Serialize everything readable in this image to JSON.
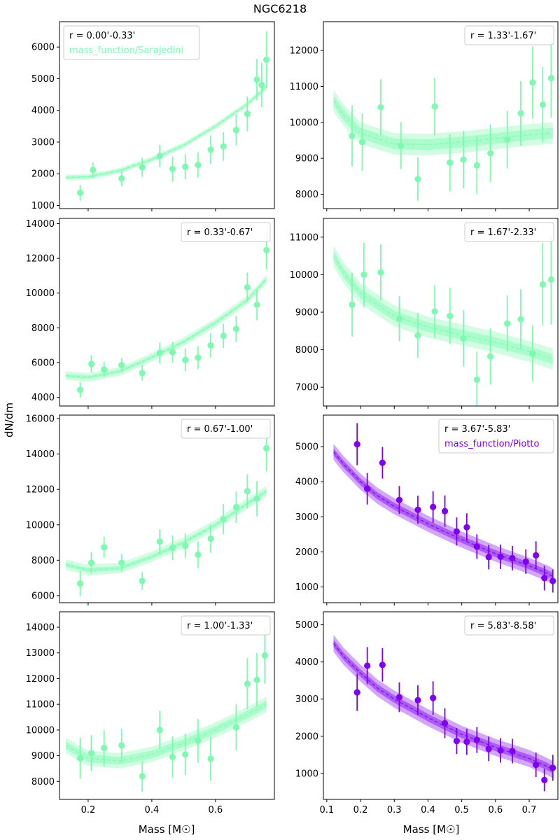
{
  "figure": {
    "title": "NGC6218",
    "ylabel": "dN/dm",
    "xlabel": "Mass [M☉]"
  },
  "colors": {
    "sarajedini": "#7dfab0",
    "piotto": "#7f00f0"
  },
  "chart_data": [
    {
      "type": "line",
      "annotation": "r = 0.00'-0.33'",
      "series_label": "mass_function/Sarajedini",
      "color": "sarajedini",
      "xlim": [
        0.11,
        0.785
      ],
      "ylim": [
        900,
        6800
      ],
      "xticks": [
        0.2,
        0.4,
        0.6
      ],
      "xtick_labels": false,
      "yticks": [
        1000,
        2000,
        3000,
        4000,
        5000,
        6000
      ],
      "model": {
        "x": [
          0.13,
          0.2,
          0.3,
          0.4,
          0.5,
          0.6,
          0.7,
          0.76
        ],
        "y": [
          1880,
          1900,
          2100,
          2450,
          2900,
          3500,
          4200,
          4750
        ],
        "inner": 40,
        "outer": 90
      },
      "points": [
        {
          "x": 0.175,
          "y": 1400,
          "err": 250
        },
        {
          "x": 0.215,
          "y": 2120,
          "err": 250
        },
        {
          "x": 0.305,
          "y": 1850,
          "err": 250
        },
        {
          "x": 0.37,
          "y": 2200,
          "err": 300
        },
        {
          "x": 0.425,
          "y": 2560,
          "err": 350
        },
        {
          "x": 0.465,
          "y": 2150,
          "err": 400
        },
        {
          "x": 0.505,
          "y": 2220,
          "err": 400
        },
        {
          "x": 0.545,
          "y": 2280,
          "err": 400
        },
        {
          "x": 0.585,
          "y": 2760,
          "err": 450
        },
        {
          "x": 0.625,
          "y": 2860,
          "err": 450
        },
        {
          "x": 0.665,
          "y": 3380,
          "err": 500
        },
        {
          "x": 0.7,
          "y": 3890,
          "err": 550
        },
        {
          "x": 0.73,
          "y": 4970,
          "err": 650
        },
        {
          "x": 0.745,
          "y": 4800,
          "err": 700
        },
        {
          "x": 0.76,
          "y": 5600,
          "err": 900
        }
      ]
    },
    {
      "type": "line",
      "annotation": "r = 1.33'-1.67'",
      "series_label": "",
      "color": "sarajedini",
      "xlim": [
        0.09,
        0.785
      ],
      "ylim": [
        7600,
        12800
      ],
      "xticks": [
        0.1,
        0.2,
        0.3,
        0.4,
        0.5,
        0.6,
        0.7
      ],
      "xtick_labels": false,
      "yticks": [
        8000,
        9000,
        10000,
        11000,
        12000
      ],
      "model": {
        "x": [
          0.12,
          0.15,
          0.2,
          0.3,
          0.4,
          0.5,
          0.6,
          0.7,
          0.77
        ],
        "y": [
          10600,
          10200,
          9700,
          9400,
          9380,
          9450,
          9550,
          9650,
          9700
        ],
        "inner": 150,
        "outer": 300
      },
      "points": [
        {
          "x": 0.175,
          "y": 9620,
          "err": 850
        },
        {
          "x": 0.205,
          "y": 9450,
          "err": 800
        },
        {
          "x": 0.26,
          "y": 10420,
          "err": 780
        },
        {
          "x": 0.32,
          "y": 9350,
          "err": 650
        },
        {
          "x": 0.37,
          "y": 8420,
          "err": 600
        },
        {
          "x": 0.42,
          "y": 10440,
          "err": 800
        },
        {
          "x": 0.465,
          "y": 8880,
          "err": 800
        },
        {
          "x": 0.505,
          "y": 8960,
          "err": 800
        },
        {
          "x": 0.545,
          "y": 8800,
          "err": 800
        },
        {
          "x": 0.585,
          "y": 9140,
          "err": 800
        },
        {
          "x": 0.635,
          "y": 9520,
          "err": 800
        },
        {
          "x": 0.675,
          "y": 10250,
          "err": 900
        },
        {
          "x": 0.71,
          "y": 11110,
          "err": 1000
        },
        {
          "x": 0.74,
          "y": 10490,
          "err": 1050
        },
        {
          "x": 0.765,
          "y": 11230,
          "err": 1100
        }
      ]
    },
    {
      "type": "line",
      "annotation": "r = 0.33'-0.67'",
      "series_label": "",
      "color": "sarajedini",
      "xlim": [
        0.11,
        0.785
      ],
      "ylim": [
        3500,
        14300
      ],
      "xticks": [
        0.2,
        0.4,
        0.6
      ],
      "xtick_labels": false,
      "yticks": [
        4000,
        6000,
        8000,
        10000,
        12000,
        14000
      ],
      "model": {
        "x": [
          0.13,
          0.2,
          0.3,
          0.4,
          0.5,
          0.6,
          0.7,
          0.76
        ],
        "y": [
          5250,
          5150,
          5500,
          6300,
          7200,
          8300,
          9600,
          10800
        ],
        "inner": 100,
        "outer": 250
      },
      "points": [
        {
          "x": 0.175,
          "y": 4430,
          "err": 450
        },
        {
          "x": 0.21,
          "y": 5920,
          "err": 500
        },
        {
          "x": 0.25,
          "y": 5600,
          "err": 450
        },
        {
          "x": 0.305,
          "y": 5850,
          "err": 400
        },
        {
          "x": 0.37,
          "y": 5400,
          "err": 450
        },
        {
          "x": 0.425,
          "y": 6550,
          "err": 600
        },
        {
          "x": 0.465,
          "y": 6600,
          "err": 600
        },
        {
          "x": 0.505,
          "y": 6150,
          "err": 650
        },
        {
          "x": 0.545,
          "y": 6280,
          "err": 650
        },
        {
          "x": 0.585,
          "y": 6990,
          "err": 700
        },
        {
          "x": 0.625,
          "y": 7540,
          "err": 700
        },
        {
          "x": 0.665,
          "y": 7940,
          "err": 750
        },
        {
          "x": 0.7,
          "y": 10330,
          "err": 850
        },
        {
          "x": 0.73,
          "y": 9330,
          "err": 900
        },
        {
          "x": 0.76,
          "y": 12470,
          "err": 1100
        }
      ]
    },
    {
      "type": "line",
      "annotation": "r = 1.67'-2.33'",
      "series_label": "",
      "color": "sarajedini",
      "xlim": [
        0.09,
        0.785
      ],
      "ylim": [
        6500,
        11500
      ],
      "xticks": [
        0.1,
        0.2,
        0.3,
        0.4,
        0.5,
        0.6,
        0.7
      ],
      "xtick_labels": false,
      "yticks": [
        7000,
        8000,
        9000,
        10000,
        11000
      ],
      "model": {
        "x": [
          0.12,
          0.15,
          0.2,
          0.3,
          0.4,
          0.5,
          0.6,
          0.7,
          0.77
        ],
        "y": [
          10500,
          10050,
          9500,
          8900,
          8600,
          8400,
          8200,
          7950,
          7750
        ],
        "inner": 130,
        "outer": 280
      },
      "points": [
        {
          "x": 0.175,
          "y": 9200,
          "err": 850
        },
        {
          "x": 0.21,
          "y": 10000,
          "err": 850
        },
        {
          "x": 0.26,
          "y": 10060,
          "err": 750
        },
        {
          "x": 0.315,
          "y": 8830,
          "err": 600
        },
        {
          "x": 0.37,
          "y": 8380,
          "err": 600
        },
        {
          "x": 0.42,
          "y": 9020,
          "err": 700
        },
        {
          "x": 0.465,
          "y": 8900,
          "err": 750
        },
        {
          "x": 0.505,
          "y": 8300,
          "err": 750
        },
        {
          "x": 0.545,
          "y": 7200,
          "err": 750
        },
        {
          "x": 0.585,
          "y": 7820,
          "err": 750
        },
        {
          "x": 0.635,
          "y": 8700,
          "err": 750
        },
        {
          "x": 0.675,
          "y": 8810,
          "err": 800
        },
        {
          "x": 0.71,
          "y": 7900,
          "err": 750
        },
        {
          "x": 0.74,
          "y": 9740,
          "err": 1100
        },
        {
          "x": 0.765,
          "y": 9870,
          "err": 1200
        }
      ]
    },
    {
      "type": "line",
      "annotation": "r = 0.67'-1.00'",
      "series_label": "",
      "color": "sarajedini",
      "xlim": [
        0.11,
        0.785
      ],
      "ylim": [
        5600,
        16200
      ],
      "xticks": [
        0.2,
        0.4,
        0.6
      ],
      "xtick_labels": false,
      "yticks": [
        6000,
        8000,
        10000,
        12000,
        14000,
        16000
      ],
      "model": {
        "x": [
          0.13,
          0.2,
          0.3,
          0.4,
          0.5,
          0.6,
          0.7,
          0.76
        ],
        "y": [
          7750,
          7450,
          7550,
          8200,
          9000,
          10000,
          11200,
          11900
        ],
        "inner": 120,
        "outer": 300
      },
      "points": [
        {
          "x": 0.175,
          "y": 6680,
          "err": 700
        },
        {
          "x": 0.21,
          "y": 7850,
          "err": 600
        },
        {
          "x": 0.25,
          "y": 8730,
          "err": 600
        },
        {
          "x": 0.305,
          "y": 7860,
          "err": 500
        },
        {
          "x": 0.37,
          "y": 6830,
          "err": 500
        },
        {
          "x": 0.425,
          "y": 9050,
          "err": 700
        },
        {
          "x": 0.465,
          "y": 8700,
          "err": 700
        },
        {
          "x": 0.505,
          "y": 8820,
          "err": 700
        },
        {
          "x": 0.545,
          "y": 8310,
          "err": 750
        },
        {
          "x": 0.585,
          "y": 9220,
          "err": 800
        },
        {
          "x": 0.625,
          "y": 10320,
          "err": 850
        },
        {
          "x": 0.665,
          "y": 11000,
          "err": 900
        },
        {
          "x": 0.7,
          "y": 11900,
          "err": 950
        },
        {
          "x": 0.73,
          "y": 11480,
          "err": 1000
        },
        {
          "x": 0.76,
          "y": 14320,
          "err": 1300
        }
      ]
    },
    {
      "type": "line",
      "annotation": "r = 3.67'-5.83'",
      "series_label": "mass_function/Piotto",
      "color": "piotto",
      "xlim": [
        0.09,
        0.785
      ],
      "ylim": [
        550,
        5900
      ],
      "xticks": [
        0.1,
        0.2,
        0.3,
        0.4,
        0.5,
        0.6,
        0.7
      ],
      "xtick_labels": false,
      "yticks": [
        1000,
        2000,
        3000,
        4000,
        5000
      ],
      "model": {
        "x": [
          0.12,
          0.15,
          0.2,
          0.25,
          0.3,
          0.4,
          0.5,
          0.6,
          0.7,
          0.75,
          0.77
        ],
        "y": [
          4850,
          4500,
          4000,
          3600,
          3300,
          2800,
          2350,
          1950,
          1600,
          1400,
          1300
        ],
        "inner": 100,
        "outer": 230
      },
      "points": [
        {
          "x": 0.19,
          "y": 5070,
          "err": 600
        },
        {
          "x": 0.22,
          "y": 3800,
          "err": 450
        },
        {
          "x": 0.265,
          "y": 4540,
          "err": 450
        },
        {
          "x": 0.315,
          "y": 3480,
          "err": 400
        },
        {
          "x": 0.37,
          "y": 3200,
          "err": 400
        },
        {
          "x": 0.415,
          "y": 3280,
          "err": 450
        },
        {
          "x": 0.45,
          "y": 3160,
          "err": 450
        },
        {
          "x": 0.485,
          "y": 2580,
          "err": 400
        },
        {
          "x": 0.515,
          "y": 2700,
          "err": 400
        },
        {
          "x": 0.545,
          "y": 2150,
          "err": 350
        },
        {
          "x": 0.58,
          "y": 1850,
          "err": 350
        },
        {
          "x": 0.615,
          "y": 1860,
          "err": 350
        },
        {
          "x": 0.65,
          "y": 1820,
          "err": 350
        },
        {
          "x": 0.69,
          "y": 1720,
          "err": 350
        },
        {
          "x": 0.72,
          "y": 1900,
          "err": 400
        },
        {
          "x": 0.745,
          "y": 1250,
          "err": 350
        },
        {
          "x": 0.77,
          "y": 1170,
          "err": 330
        }
      ]
    },
    {
      "type": "line",
      "annotation": "r = 1.00'-1.33'",
      "series_label": "",
      "color": "sarajedini",
      "xlim": [
        0.11,
        0.785
      ],
      "ylim": [
        7300,
        14600
      ],
      "xticks": [
        0.2,
        0.4,
        0.6
      ],
      "xtick_labels": [
        0.2,
        0.4,
        0.6
      ],
      "yticks": [
        8000,
        9000,
        10000,
        11000,
        12000,
        13000,
        14000
      ],
      "model": {
        "x": [
          0.13,
          0.2,
          0.3,
          0.4,
          0.5,
          0.6,
          0.7,
          0.76
        ],
        "y": [
          9400,
          8900,
          8800,
          9050,
          9500,
          10000,
          10600,
          11000
        ],
        "inner": 150,
        "outer": 300
      },
      "points": [
        {
          "x": 0.175,
          "y": 8900,
          "err": 800
        },
        {
          "x": 0.21,
          "y": 9100,
          "err": 700
        },
        {
          "x": 0.25,
          "y": 9300,
          "err": 700
        },
        {
          "x": 0.305,
          "y": 9400,
          "err": 650
        },
        {
          "x": 0.37,
          "y": 8200,
          "err": 600
        },
        {
          "x": 0.425,
          "y": 10000,
          "err": 750
        },
        {
          "x": 0.465,
          "y": 8950,
          "err": 800
        },
        {
          "x": 0.505,
          "y": 9050,
          "err": 800
        },
        {
          "x": 0.545,
          "y": 9580,
          "err": 850
        },
        {
          "x": 0.585,
          "y": 8880,
          "err": 850
        },
        {
          "x": 0.665,
          "y": 10100,
          "err": 900
        },
        {
          "x": 0.7,
          "y": 11800,
          "err": 1000
        },
        {
          "x": 0.73,
          "y": 11950,
          "err": 1050
        },
        {
          "x": 0.755,
          "y": 12900,
          "err": 1100
        }
      ]
    },
    {
      "type": "line",
      "annotation": "r = 5.83'-8.58'",
      "series_label": "",
      "color": "piotto",
      "xlim": [
        0.09,
        0.785
      ],
      "ylim": [
        300,
        5350
      ],
      "xticks": [
        0.1,
        0.2,
        0.3,
        0.4,
        0.5,
        0.6,
        0.7
      ],
      "xtick_labels": [
        0.1,
        0.2,
        0.3,
        0.4,
        0.5,
        0.6,
        0.7
      ],
      "yticks": [
        1000,
        2000,
        3000,
        4000,
        5000
      ],
      "model": {
        "x": [
          0.12,
          0.15,
          0.2,
          0.25,
          0.3,
          0.4,
          0.5,
          0.6,
          0.7,
          0.75,
          0.77
        ],
        "y": [
          4500,
          4150,
          3700,
          3300,
          3000,
          2500,
          2050,
          1700,
          1400,
          1200,
          1100
        ],
        "inner": 100,
        "outer": 230
      },
      "points": [
        {
          "x": 0.19,
          "y": 3180,
          "err": 500
        },
        {
          "x": 0.22,
          "y": 3900,
          "err": 500
        },
        {
          "x": 0.265,
          "y": 3920,
          "err": 450
        },
        {
          "x": 0.315,
          "y": 3050,
          "err": 400
        },
        {
          "x": 0.37,
          "y": 2970,
          "err": 400
        },
        {
          "x": 0.415,
          "y": 3030,
          "err": 450
        },
        {
          "x": 0.45,
          "y": 2350,
          "err": 400
        },
        {
          "x": 0.485,
          "y": 1870,
          "err": 350
        },
        {
          "x": 0.515,
          "y": 1850,
          "err": 350
        },
        {
          "x": 0.545,
          "y": 1900,
          "err": 350
        },
        {
          "x": 0.58,
          "y": 1660,
          "err": 330
        },
        {
          "x": 0.615,
          "y": 1620,
          "err": 330
        },
        {
          "x": 0.65,
          "y": 1600,
          "err": 330
        },
        {
          "x": 0.72,
          "y": 1230,
          "err": 330
        },
        {
          "x": 0.745,
          "y": 820,
          "err": 300
        },
        {
          "x": 0.77,
          "y": 1150,
          "err": 350
        }
      ]
    }
  ]
}
